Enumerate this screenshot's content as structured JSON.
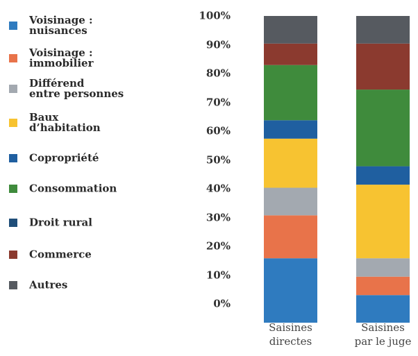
{
  "chart_data": {
    "type": "stacked_bar",
    "categories": [
      "Saisines\ndirectes",
      "Saisines\npar le juge"
    ],
    "series": [
      {
        "name": "Voisinage :\nnuisances",
        "color": "#2f7bbf",
        "values": [
          21,
          9
        ]
      },
      {
        "name": "Voisinage :\nimmobilier",
        "color": "#e8734a",
        "values": [
          14,
          6
        ]
      },
      {
        "name": "Différend\nentre personnes",
        "color": "#a3a9b0",
        "values": [
          9,
          6
        ]
      },
      {
        "name": "Baux\nd’habitation",
        "color": "#f7c331",
        "values": [
          16,
          24
        ]
      },
      {
        "name": "Copropriété",
        "color": "#1f5fa0",
        "values": [
          6,
          6
        ]
      },
      {
        "name": "Consommation",
        "color": "#3f8b3c",
        "values": [
          18,
          25
        ]
      },
      {
        "name": "Droit rural",
        "color": "#1f4e79",
        "values": [
          0,
          0
        ]
      },
      {
        "name": "Commerce",
        "color": "#8b3a2f",
        "values": [
          7,
          15
        ]
      },
      {
        "name": "Autres",
        "color": "#565a60",
        "values": [
          9,
          9
        ]
      }
    ],
    "ylim": [
      0,
      100
    ],
    "yticks": [
      {
        "value": 0,
        "label": "0%"
      },
      {
        "value": 10,
        "label": "10%"
      },
      {
        "value": 20,
        "label": "20%"
      },
      {
        "value": 30,
        "label": "30%"
      },
      {
        "value": 40,
        "label": "40%"
      },
      {
        "value": 50,
        "label": "50%"
      },
      {
        "value": 60,
        "label": "60%"
      },
      {
        "value": 70,
        "label": "70%"
      },
      {
        "value": 80,
        "label": "80%"
      },
      {
        "value": 90,
        "label": "90%"
      },
      {
        "value": 100,
        "label": "100%"
      }
    ],
    "legend": "left"
  }
}
